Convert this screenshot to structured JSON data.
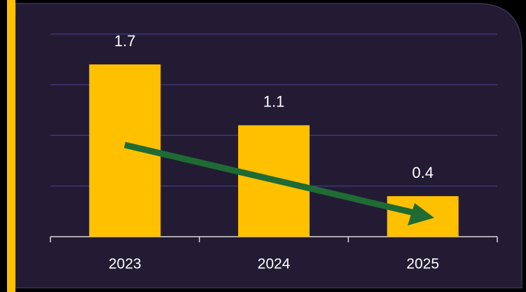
{
  "chart_data": {
    "type": "bar",
    "categories": [
      "2023",
      "2024",
      "2025"
    ],
    "values": [
      1.7,
      1.1,
      0.4
    ],
    "color": "#ffc000",
    "ylim": [
      0,
      2
    ],
    "yticks": [
      0,
      0.5,
      1,
      1.5,
      2
    ],
    "grid": true
  }
}
